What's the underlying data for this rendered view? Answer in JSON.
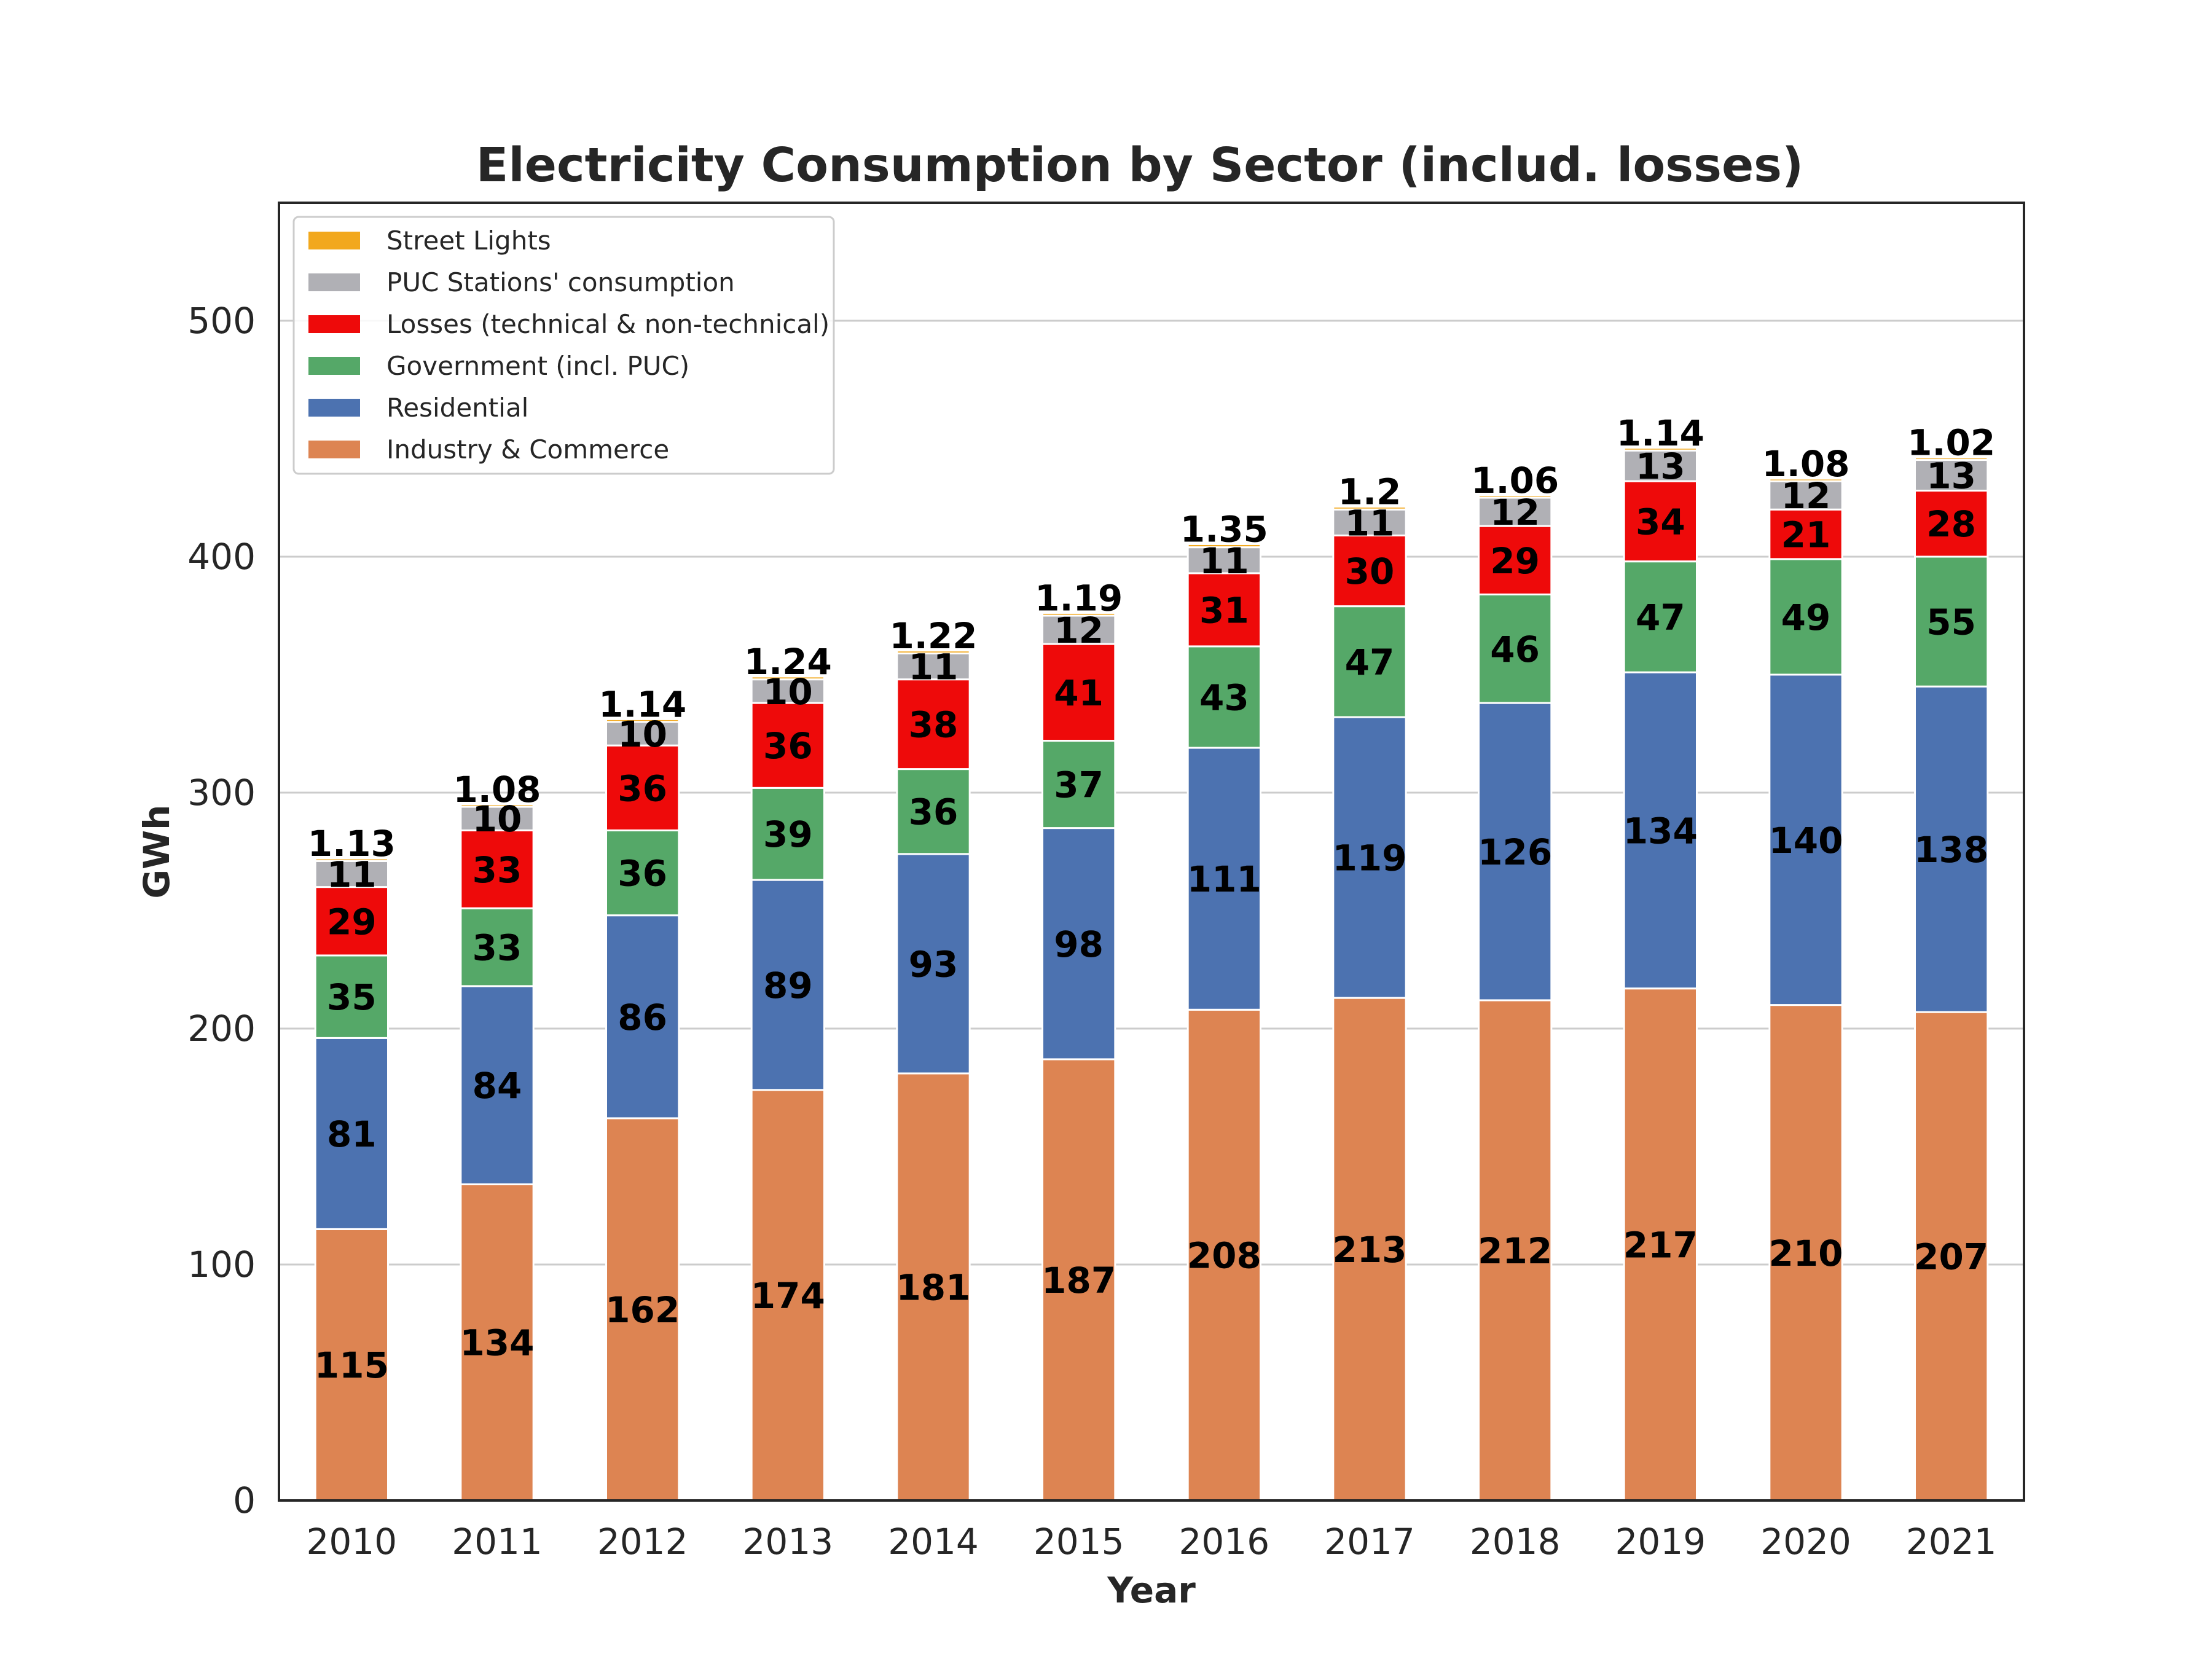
{
  "chart_data": {
    "type": "bar",
    "stacked": true,
    "title": "Electricity Consumption by Sector (includ. losses)",
    "xlabel": "Year",
    "ylabel": "GWh",
    "ylim": [
      0,
      550
    ],
    "yticks": [
      0,
      100,
      200,
      300,
      400,
      500
    ],
    "grid": "horizontal",
    "legend_position": "top-left",
    "categories": [
      "2010",
      "2011",
      "2012",
      "2013",
      "2014",
      "2015",
      "2016",
      "2017",
      "2018",
      "2019",
      "2020",
      "2021"
    ],
    "series": [
      {
        "name": "Industry & Commerce",
        "color": "#DD8452",
        "values": [
          115,
          134,
          162,
          174,
          181,
          187,
          208,
          213,
          212,
          217,
          210,
          207
        ],
        "labels": [
          "115",
          "134",
          "162",
          "174",
          "181",
          "187",
          "208",
          "213",
          "212",
          "217",
          "210",
          "207"
        ]
      },
      {
        "name": "Residential",
        "color": "#4C72B0",
        "values": [
          81,
          84,
          86,
          89,
          93,
          98,
          111,
          119,
          126,
          134,
          140,
          138
        ],
        "labels": [
          "81",
          "84",
          "86",
          "89",
          "93",
          "98",
          "111",
          "119",
          "126",
          "134",
          "140",
          "138"
        ]
      },
      {
        "name": "Government (incl. PUC)",
        "color": "#55A868",
        "values": [
          35,
          33,
          36,
          39,
          36,
          37,
          43,
          47,
          46,
          47,
          49,
          55
        ],
        "labels": [
          "35",
          "33",
          "36",
          "39",
          "36",
          "37",
          "43",
          "47",
          "46",
          "47",
          "49",
          "55"
        ]
      },
      {
        "name": "Losses (technical & non-technical)",
        "color": "#EE0A0A",
        "values": [
          29,
          33,
          36,
          36,
          38,
          41,
          31,
          30,
          29,
          34,
          21,
          28
        ],
        "labels": [
          "29",
          "33",
          "36",
          "36",
          "38",
          "41",
          "31",
          "30",
          "29",
          "34",
          "21",
          "28"
        ]
      },
      {
        "name": "PUC Stations' consumption",
        "color": "#B0B0B5",
        "values": [
          11,
          10,
          10,
          10,
          11,
          12,
          11,
          11,
          12,
          13,
          12,
          13
        ],
        "labels": [
          "11",
          "10",
          "10",
          "10",
          "11",
          "12",
          "11",
          "11",
          "12",
          "13",
          "12",
          "13"
        ]
      },
      {
        "name": "Street Lights",
        "color": "#F2A81D",
        "values": [
          1.13,
          1.08,
          1.14,
          1.24,
          1.22,
          1.19,
          1.35,
          1.2,
          1.06,
          1.14,
          1.08,
          1.02
        ],
        "labels": [
          "1.13",
          "1.08",
          "1.14",
          "1.24",
          "1.22",
          "1.19",
          "1.35",
          "1.2",
          "1.06",
          "1.14",
          "1.08",
          "1.02"
        ]
      }
    ],
    "legend_order": [
      "Street Lights",
      "PUC Stations' consumption",
      "Losses (technical & non-technical)",
      "Government (incl. PUC)",
      "Residential",
      "Industry & Commerce"
    ]
  }
}
